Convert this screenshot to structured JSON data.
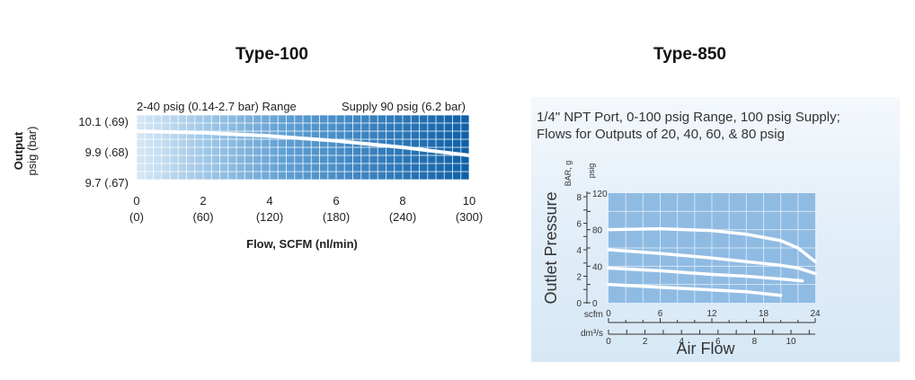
{
  "titles": {
    "left": "Type-100",
    "right": "Type-850"
  },
  "chart_data": [
    {
      "type": "line",
      "title": "Type-100",
      "header_left": "2-40 psig (0.14-2.7 bar) Range",
      "header_right": "Supply 90 psig (6.2 bar)",
      "ylabel_line1": "Output",
      "ylabel_line2": "psig (bar)",
      "xlabel": "Flow, SCFM (nl/min)",
      "xlim": [
        0,
        10
      ],
      "ylim": [
        9.7,
        10.1
      ],
      "x_ticks": [
        0,
        2,
        4,
        6,
        8,
        10
      ],
      "x_tick_labels": [
        "0",
        "2",
        "4",
        "6",
        "8",
        "10"
      ],
      "x_tick_sublabels": [
        "(0)",
        "(60)",
        "(120)",
        "(180)",
        "(240)",
        "(300)"
      ],
      "y_ticks": [
        10.1,
        9.9,
        9.7
      ],
      "y_tick_labels": [
        "10.1 (.69)",
        "9.9 (.68)",
        "9.7 (.67)"
      ],
      "series": [
        {
          "name": "Output",
          "x": [
            0,
            2,
            4,
            6,
            8,
            10
          ],
          "y": [
            10.0,
            9.99,
            9.97,
            9.94,
            9.9,
            9.85
          ]
        }
      ]
    },
    {
      "type": "line",
      "title": "Type-850",
      "caption_line1": "1/4\" NPT Port, 0-100 psig Range, 100 psig Supply;",
      "caption_line2": "Flows for Outputs of 20, 40, 60, & 80 psig",
      "ylabel": "Outlet Pressure",
      "y_unit_left": "BAR, g",
      "y_unit_right": "psig",
      "xlabel": "Air Flow",
      "x_unit_top": "scfm",
      "x_unit_bottom": "dm³/s",
      "xlim": [
        0,
        24
      ],
      "ylim": [
        0,
        120
      ],
      "x_ticks": [
        0,
        6,
        12,
        18,
        24
      ],
      "x_tick_labels": [
        "0",
        "6",
        "12",
        "18",
        "24"
      ],
      "x2_ticks": [
        0,
        2,
        4,
        6,
        8,
        10
      ],
      "x2_tick_labels": [
        "0",
        "2",
        "4",
        "6",
        "8",
        "10"
      ],
      "y_ticks_psig": [
        0,
        40,
        80,
        120
      ],
      "y_tick_labels_psig": [
        "0",
        "40",
        "80",
        "120"
      ],
      "y_ticks_bar": [
        0,
        2,
        4,
        6,
        8
      ],
      "y_tick_labels_bar": [
        "0",
        "2",
        "4",
        "6",
        "8"
      ],
      "series": [
        {
          "name": "80 psig",
          "x": [
            0,
            6,
            12,
            16,
            20,
            22,
            24
          ],
          "y": [
            80,
            81,
            79,
            75,
            68,
            60,
            45
          ]
        },
        {
          "name": "60 psig",
          "x": [
            0,
            6,
            12,
            16,
            20,
            22,
            24
          ],
          "y": [
            58,
            54,
            49,
            45,
            41,
            38,
            32
          ]
        },
        {
          "name": "40 psig",
          "x": [
            0,
            6,
            12,
            16,
            20,
            22.5
          ],
          "y": [
            38,
            35,
            31,
            29,
            26,
            24
          ]
        },
        {
          "name": "20 psig",
          "x": [
            0,
            6,
            12,
            16,
            20
          ],
          "y": [
            20,
            17,
            14,
            12,
            8
          ]
        }
      ]
    }
  ]
}
